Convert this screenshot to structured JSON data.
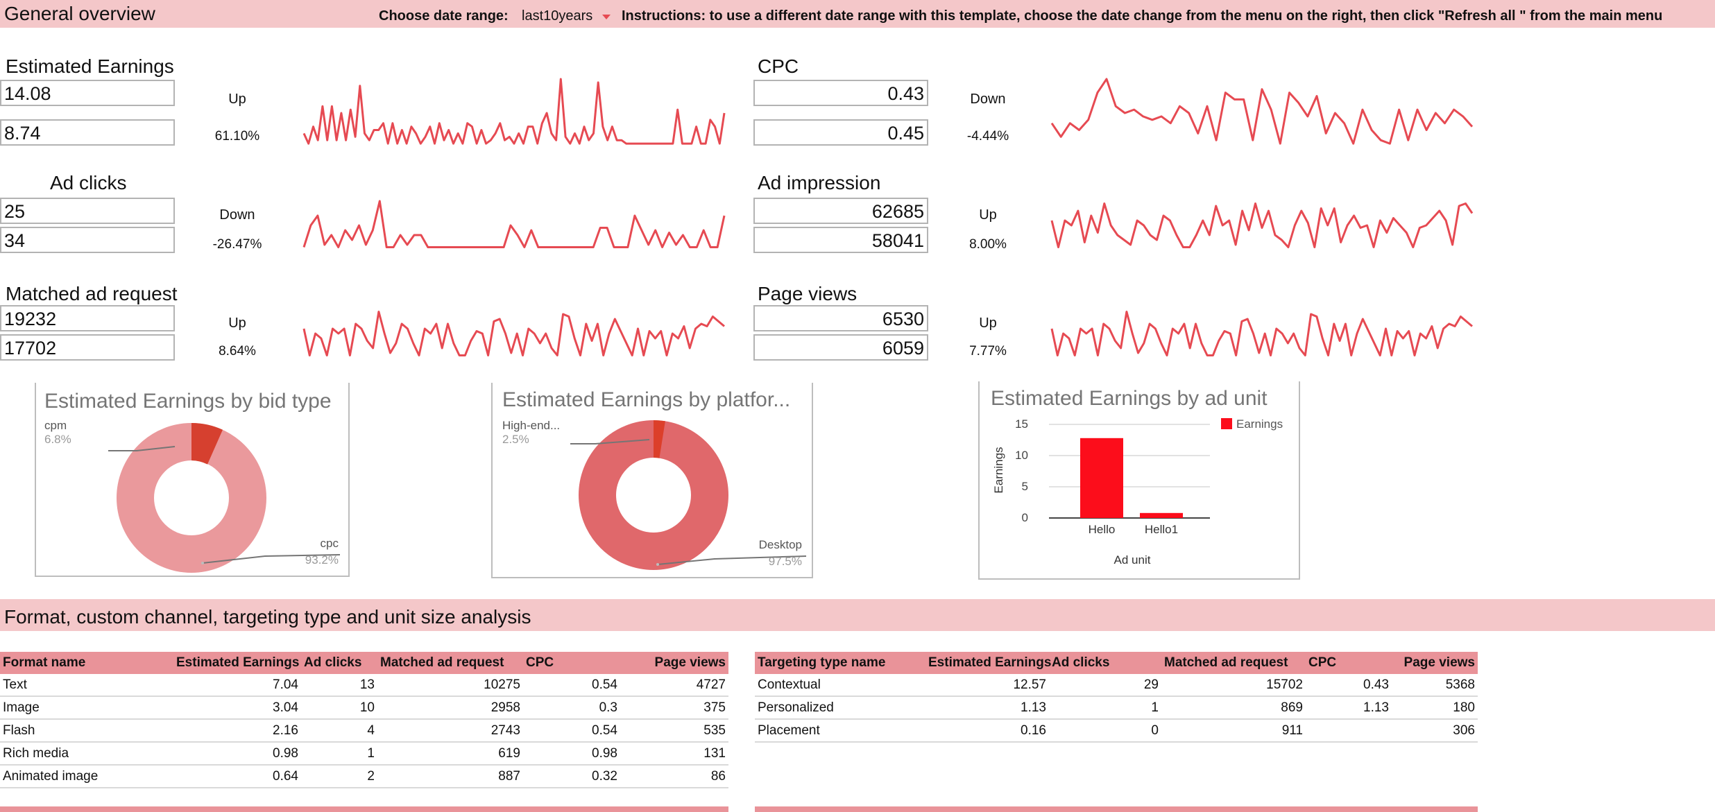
{
  "header": {
    "title": "General overview",
    "date_range_label": "Choose date range:",
    "date_range_value": "last10years",
    "instructions": "Instructions: to use a different date range with this template, choose the date change from the menu on the right, then click \"Refresh all \" from the main menu"
  },
  "colors": {
    "band": "#f4c7c9",
    "table_header": "#e99399",
    "sparkline": "#e64a52",
    "accent_red": "#fc0d1b"
  },
  "metrics": [
    {
      "title": "Estimated Earnings",
      "current": "14.08",
      "previous": "8.74",
      "direction": "Up",
      "change": "61.10%",
      "align": "left",
      "spark": [
        0.2,
        0.05,
        0.3,
        0.1,
        0.6,
        0.1,
        0.6,
        0.1,
        0.5,
        0.1,
        0.55,
        0.15,
        0.9,
        0.2,
        0.1,
        0.25,
        0.25,
        0.35,
        0.05,
        0.35,
        0.05,
        0.25,
        0.05,
        0.3,
        0.2,
        0.05,
        0.15,
        0.3,
        0.05,
        0.35,
        0.1,
        0.25,
        0.05,
        0.2,
        0.05,
        0.35,
        0.3,
        0.05,
        0.25,
        0.05,
        0.1,
        0.2,
        0.35,
        0.1,
        0.15,
        0.05,
        0.2,
        0.05,
        0.3,
        0.3,
        0.05,
        0.35,
        0.5,
        0.2,
        0.1,
        1.0,
        0.15,
        0.05,
        0.2,
        0.05,
        0.3,
        0.1,
        0.2,
        0.95,
        0.3,
        0.1,
        0.3,
        0.1,
        0.1,
        0.05,
        0.05,
        0.05,
        0.05,
        0.05,
        0.05,
        0.05,
        0.05,
        0.05,
        0.05,
        0.05,
        0.55,
        0.05,
        0.05,
        0.05,
        0.3,
        0.05,
        0.05,
        0.4,
        0.3,
        0.05,
        0.5
      ]
    },
    {
      "title": "CPC",
      "current": "0.43",
      "previous": "0.45",
      "direction": "Down",
      "change": "-4.44%",
      "align": "right",
      "spark": [
        0.35,
        0.15,
        0.35,
        0.25,
        0.4,
        0.8,
        1.0,
        0.6,
        0.5,
        0.55,
        0.45,
        0.4,
        0.45,
        0.35,
        0.6,
        0.5,
        0.2,
        0.6,
        0.1,
        0.8,
        0.7,
        0.7,
        0.1,
        0.85,
        0.55,
        0.05,
        0.8,
        0.65,
        0.45,
        0.75,
        0.2,
        0.5,
        0.35,
        0.05,
        0.55,
        0.25,
        0.1,
        0.05,
        0.55,
        0.1,
        0.55,
        0.25,
        0.5,
        0.35,
        0.55,
        0.45,
        0.3
      ]
    },
    {
      "title": "Ad clicks",
      "current": "25",
      "previous": "34",
      "direction": "Down",
      "change": "-26.47%",
      "align": "left",
      "spark": [
        0.05,
        0.5,
        0.7,
        0.1,
        0.3,
        0.05,
        0.4,
        0.2,
        0.5,
        0.1,
        0.4,
        1.0,
        0.05,
        0.05,
        0.3,
        0.1,
        0.3,
        0.3,
        0.05,
        0.05,
        0.05,
        0.05,
        0.05,
        0.05,
        0.05,
        0.05,
        0.05,
        0.05,
        0.05,
        0.05,
        0.5,
        0.3,
        0.05,
        0.4,
        0.05,
        0.05,
        0.05,
        0.05,
        0.05,
        0.05,
        0.05,
        0.05,
        0.05,
        0.45,
        0.45,
        0.05,
        0.05,
        0.05,
        0.7,
        0.4,
        0.1,
        0.4,
        0.05,
        0.35,
        0.1,
        0.3,
        0.05,
        0.05,
        0.4,
        0.05,
        0.05,
        0.7
      ]
    },
    {
      "title": "Ad impression",
      "current": "62685",
      "previous": "58041",
      "direction": "Up",
      "change": "8.00%",
      "align": "right",
      "spark": [
        0.6,
        0.05,
        0.6,
        0.5,
        0.8,
        0.15,
        0.7,
        0.35,
        0.95,
        0.5,
        0.3,
        0.2,
        0.1,
        0.6,
        0.5,
        0.3,
        0.2,
        0.7,
        0.6,
        0.3,
        0.05,
        0.05,
        0.3,
        0.6,
        0.3,
        0.9,
        0.5,
        0.6,
        0.1,
        0.8,
        0.4,
        0.95,
        0.45,
        0.8,
        0.3,
        0.2,
        0.05,
        0.5,
        0.8,
        0.55,
        0.05,
        0.85,
        0.5,
        0.85,
        0.15,
        0.5,
        0.7,
        0.45,
        0.5,
        0.05,
        0.6,
        0.35,
        0.65,
        0.5,
        0.35,
        0.05,
        0.45,
        0.5,
        0.65,
        0.8,
        0.6,
        0.1,
        0.9,
        0.95,
        0.75
      ]
    },
    {
      "title": "Matched ad request",
      "current": "19232",
      "previous": "17702",
      "direction": "Up",
      "change": "8.64%",
      "align": "left",
      "spark": [
        0.6,
        0.05,
        0.5,
        0.4,
        0.05,
        0.6,
        0.5,
        0.6,
        0.05,
        0.7,
        0.6,
        0.35,
        0.2,
        0.95,
        0.5,
        0.1,
        0.3,
        0.7,
        0.6,
        0.3,
        0.05,
        0.6,
        0.5,
        0.7,
        0.2,
        0.7,
        0.3,
        0.05,
        0.05,
        0.35,
        0.55,
        0.5,
        0.05,
        0.75,
        0.8,
        0.5,
        0.1,
        0.5,
        0.05,
        0.6,
        0.5,
        0.3,
        0.5,
        0.2,
        0.05,
        0.9,
        0.85,
        0.4,
        0.05,
        0.7,
        0.35,
        0.7,
        0.05,
        0.5,
        0.8,
        0.55,
        0.3,
        0.05,
        0.6,
        0.05,
        0.55,
        0.4,
        0.55,
        0.05,
        0.5,
        0.4,
        0.65,
        0.2,
        0.6,
        0.7,
        0.65,
        0.85,
        0.75,
        0.65
      ]
    },
    {
      "title": "Page views",
      "current": "6530",
      "previous": "6059",
      "direction": "Up",
      "change": "7.77%",
      "align": "right",
      "spark": [
        0.6,
        0.05,
        0.5,
        0.4,
        0.05,
        0.6,
        0.5,
        0.6,
        0.05,
        0.7,
        0.6,
        0.35,
        0.2,
        0.95,
        0.5,
        0.1,
        0.3,
        0.7,
        0.6,
        0.3,
        0.05,
        0.6,
        0.5,
        0.7,
        0.2,
        0.7,
        0.3,
        0.05,
        0.05,
        0.35,
        0.55,
        0.5,
        0.05,
        0.75,
        0.8,
        0.5,
        0.1,
        0.5,
        0.05,
        0.6,
        0.5,
        0.3,
        0.5,
        0.2,
        0.05,
        0.9,
        0.85,
        0.4,
        0.05,
        0.7,
        0.35,
        0.7,
        0.05,
        0.5,
        0.8,
        0.55,
        0.3,
        0.05,
        0.6,
        0.05,
        0.55,
        0.4,
        0.55,
        0.05,
        0.5,
        0.4,
        0.65,
        0.2,
        0.6,
        0.7,
        0.65,
        0.85,
        0.75,
        0.65
      ]
    }
  ],
  "charts": {
    "bid_type": {
      "title": "Estimated Earnings by bid type",
      "slices": [
        {
          "label": "cpm",
          "pct": "6.8%",
          "value": 6.8,
          "color": "#d6402f"
        },
        {
          "label": "cpc",
          "pct": "93.2%",
          "value": 93.2,
          "color": "#ea999c"
        }
      ]
    },
    "platform": {
      "title": "Estimated Earnings by platfor...",
      "slices": [
        {
          "label": "High-end...",
          "pct": "2.5%",
          "value": 2.5,
          "color": "#dc3f2a"
        },
        {
          "label": "Desktop",
          "pct": "97.5%",
          "value": 97.5,
          "color": "#e0686b"
        }
      ]
    },
    "ad_unit": {
      "title": "Estimated Earnings by ad unit",
      "legend": "Earnings",
      "ylabel": "Earnings",
      "xlabel": "Ad unit",
      "yticks": [
        "15",
        "10",
        "5",
        "0"
      ]
    }
  },
  "chart_data": [
    {
      "type": "pie",
      "title": "Estimated Earnings by bid type",
      "categories": [
        "cpm",
        "cpc"
      ],
      "values": [
        6.8,
        93.2
      ]
    },
    {
      "type": "pie",
      "title": "Estimated Earnings by platfor...",
      "categories": [
        "High-end...",
        "Desktop"
      ],
      "values": [
        2.5,
        97.5
      ]
    },
    {
      "type": "bar",
      "title": "Estimated Earnings by ad unit",
      "categories": [
        "Hello",
        "Hello1"
      ],
      "series": [
        {
          "name": "Earnings",
          "values": [
            12.8,
            0.8
          ]
        }
      ],
      "xlabel": "Ad unit",
      "ylabel": "Earnings",
      "ylim": [
        0,
        15
      ],
      "legend": "top-right",
      "grid": true
    }
  ],
  "section2": {
    "title": "Format, custom channel, targeting type and unit size analysis"
  },
  "format_table": {
    "headers": [
      "Format name",
      "Estimated Earnings",
      "Ad clicks",
      "Matched ad request",
      "CPC",
      "Page views"
    ],
    "rows": [
      [
        "Text",
        "7.04",
        "13",
        "10275",
        "0.54",
        "4727"
      ],
      [
        "Image",
        "3.04",
        "10",
        "2958",
        "0.3",
        "375"
      ],
      [
        "Flash",
        "2.16",
        "4",
        "2743",
        "0.54",
        "535"
      ],
      [
        "Rich media",
        "0.98",
        "1",
        "619",
        "0.98",
        "131"
      ],
      [
        "Animated image",
        "0.64",
        "2",
        "887",
        "0.32",
        "86"
      ]
    ]
  },
  "targeting_table": {
    "headers": [
      "Targeting type name",
      "Estimated Earnings",
      "Ad clicks",
      "Matched ad request",
      "CPC",
      "Page views"
    ],
    "rows": [
      [
        "Contextual",
        "12.57",
        "29",
        "15702",
        "0.43",
        "5368"
      ],
      [
        "Personalized",
        "1.13",
        "1",
        "869",
        "1.13",
        "180"
      ],
      [
        "Placement",
        "0.16",
        "0",
        "911",
        "",
        "306"
      ]
    ]
  }
}
